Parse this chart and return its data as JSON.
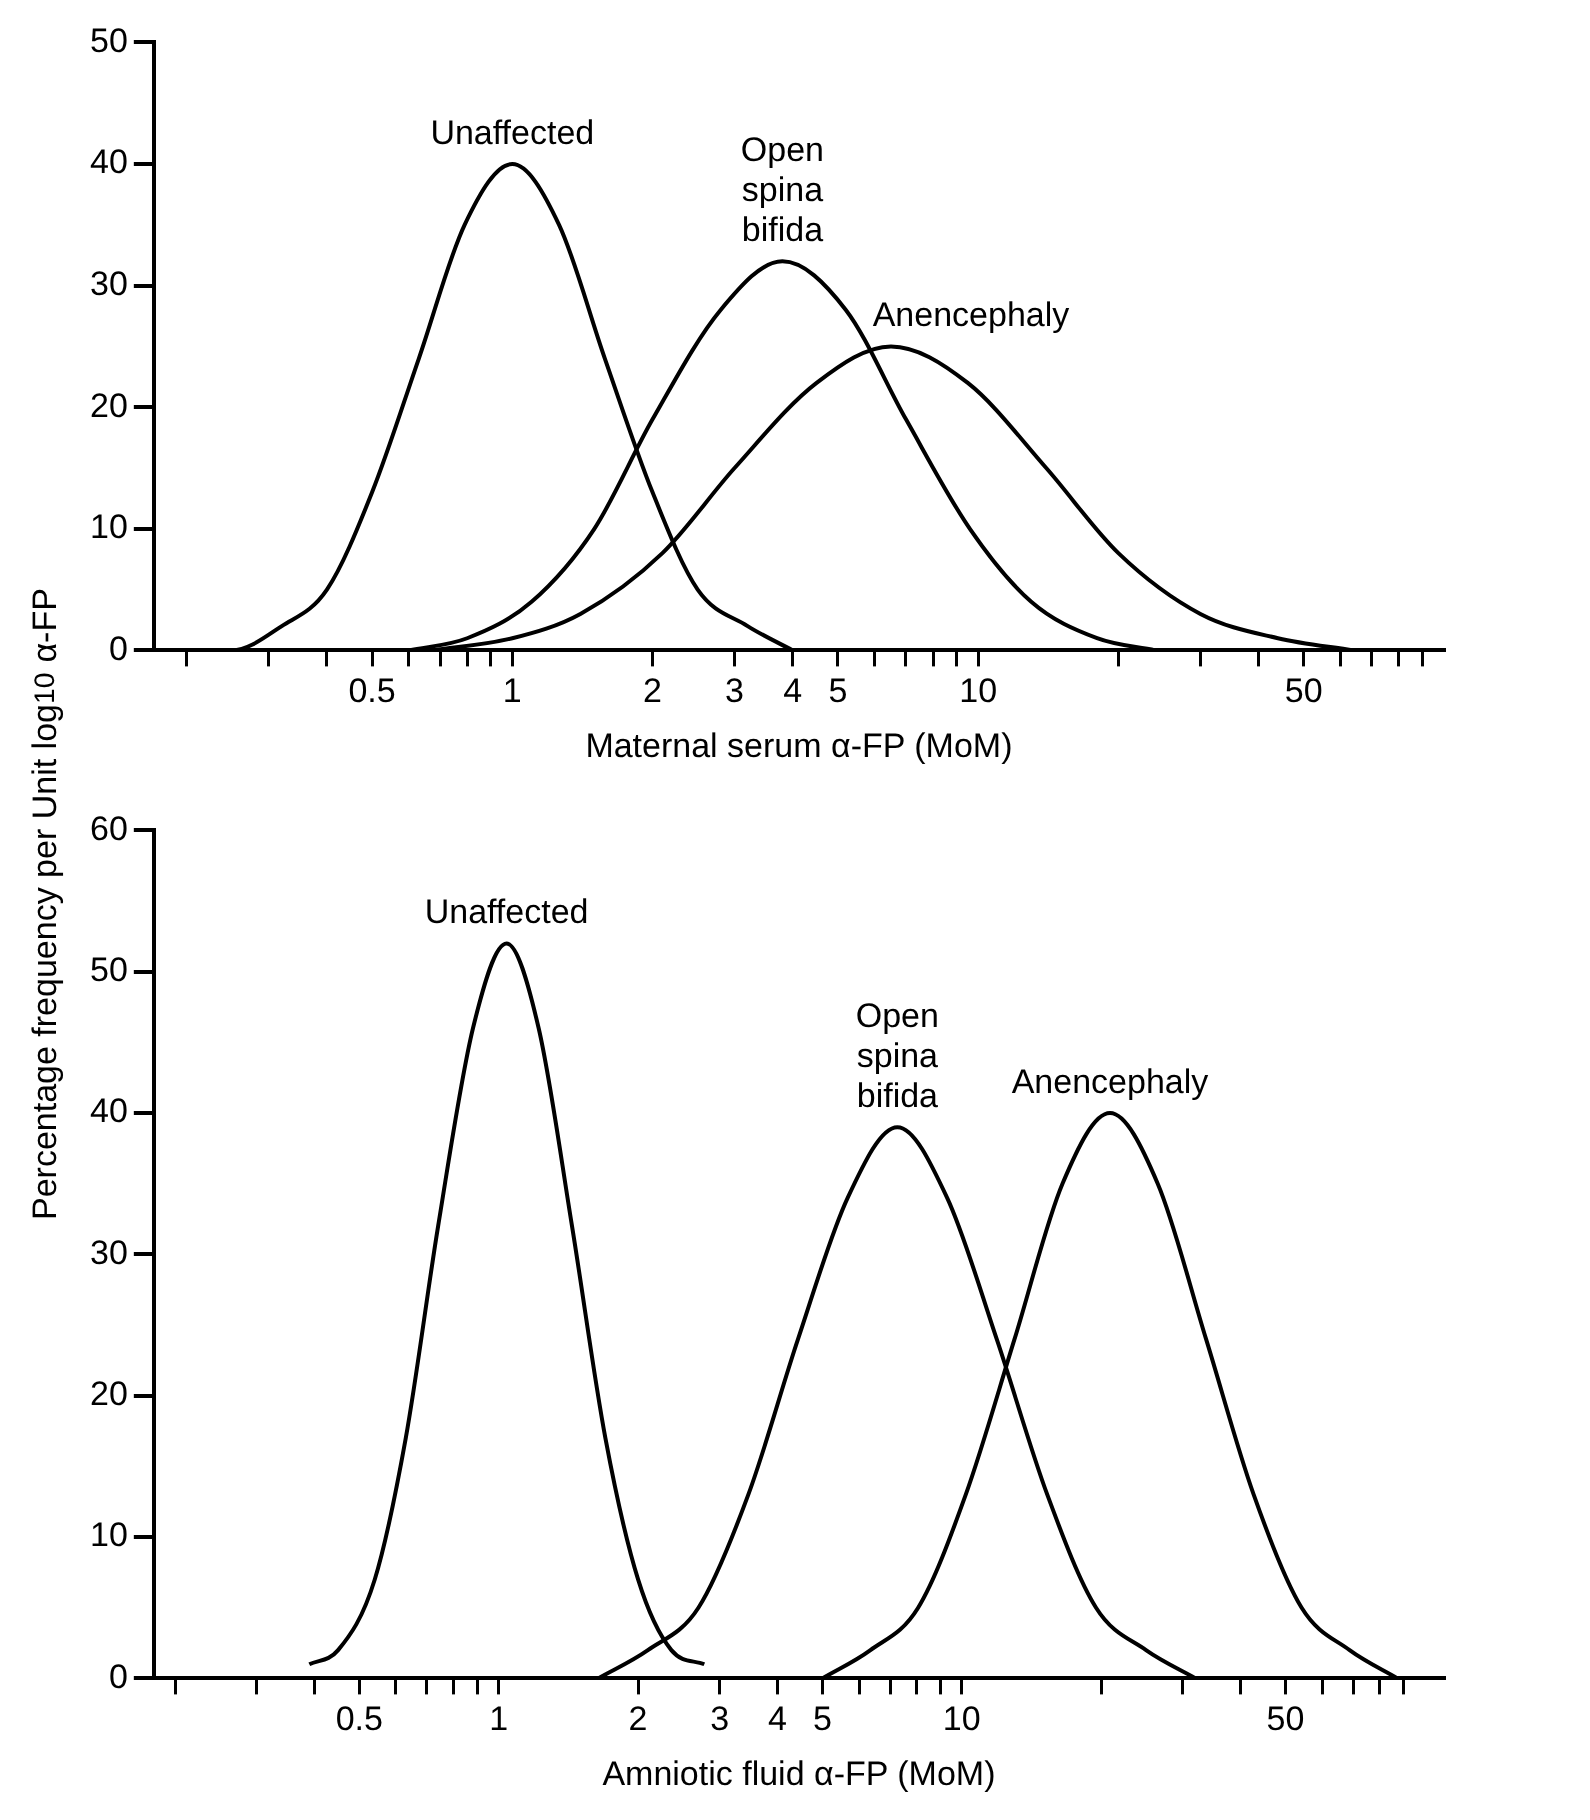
{
  "chart_data": [
    {
      "type": "line",
      "xlabel": "Maternal serum α-FP (MoM)",
      "log": "x",
      "xlim": [
        0.17,
        100
      ],
      "ylim": [
        0,
        50
      ],
      "yticks": [
        0,
        10,
        20,
        30,
        40,
        50
      ],
      "xticks": [
        {
          "value": 0.2,
          "label": null
        },
        {
          "value": 0.3,
          "label": null
        },
        {
          "value": 0.4,
          "label": null
        },
        0.5,
        {
          "value": 0.6,
          "label": null
        },
        {
          "value": 0.7,
          "label": null
        },
        {
          "value": 0.8,
          "label": null
        },
        {
          "value": 0.9,
          "label": null
        },
        1,
        2,
        3,
        4,
        5,
        {
          "value": 6,
          "label": null
        },
        {
          "value": 7,
          "label": null
        },
        {
          "value": 8,
          "label": null
        },
        {
          "value": 9,
          "label": null
        },
        10,
        {
          "value": 20,
          "label": null
        },
        {
          "value": 30,
          "label": null
        },
        {
          "value": 40,
          "label": null
        },
        50,
        {
          "value": 60,
          "label": null
        },
        {
          "value": 70,
          "label": null
        },
        {
          "value": 80,
          "label": null
        },
        {
          "value": 90,
          "label": null
        }
      ],
      "grid": false,
      "legend": false,
      "marker": "none",
      "line_style": "solid",
      "series": [
        {
          "name": "Unaffected",
          "color": "#000000",
          "x": [
            0.2,
            0.25,
            0.32,
            0.4,
            0.5,
            0.63,
            0.79,
            1,
            1.26,
            1.58,
            2,
            2.5,
            3.2,
            4
          ],
          "values": [
            0,
            0,
            2,
            5,
            13,
            24,
            35,
            40,
            35,
            24,
            13,
            5,
            2,
            0
          ]
        },
        {
          "name": "Open spina bifida",
          "color": "#000000",
          "x": [
            0.6,
            0.8,
            1.1,
            1.5,
            2,
            2.8,
            3.8,
            5.2,
            7,
            9.6,
            13,
            18,
            24
          ],
          "values": [
            0,
            1,
            4,
            10,
            19,
            28,
            32,
            28,
            19,
            10,
            4,
            1,
            0
          ]
        },
        {
          "name": "Anencephaly",
          "color": "#000000",
          "x": [
            0.67,
            1,
            1.4,
            2.1,
            3,
            4.5,
            6.5,
            9.5,
            14,
            20,
            30,
            44,
            64
          ],
          "values": [
            0,
            1,
            3,
            8,
            15,
            22,
            25,
            22,
            15,
            8,
            3,
            1,
            0
          ]
        }
      ]
    },
    {
      "type": "line",
      "xlabel": "Amniotic fluid α-FP (MoM)",
      "ylabel": "Percentage frequency per Unit log$_{10}$ α-FP",
      "log": "x",
      "xlim": [
        0.18,
        110
      ],
      "ylim": [
        0,
        60
      ],
      "yticks": [
        0,
        10,
        20,
        30,
        40,
        50,
        60
      ],
      "xticks": [
        {
          "value": 0.2,
          "label": null
        },
        {
          "value": 0.3,
          "label": null
        },
        {
          "value": 0.4,
          "label": null
        },
        0.5,
        {
          "value": 0.6,
          "label": null
        },
        {
          "value": 0.7,
          "label": null
        },
        {
          "value": 0.8,
          "label": null
        },
        {
          "value": 0.9,
          "label": null
        },
        1,
        2,
        3,
        4,
        5,
        {
          "value": 6,
          "label": null
        },
        {
          "value": 7,
          "label": null
        },
        {
          "value": 8,
          "label": null
        },
        {
          "value": 9,
          "label": null
        },
        10,
        {
          "value": 20,
          "label": null
        },
        {
          "value": 30,
          "label": null
        },
        {
          "value": 40,
          "label": null
        },
        50,
        {
          "value": 60,
          "label": null
        },
        {
          "value": 70,
          "label": null
        },
        {
          "value": 80,
          "label": null
        },
        {
          "value": 90,
          "label": null
        }
      ],
      "grid": false,
      "legend": false,
      "marker": "none",
      "line_style": "solid",
      "series": [
        {
          "name": "Unaffected",
          "color": "#000000",
          "x": [
            0.39,
            0.45,
            0.54,
            0.63,
            0.74,
            0.88,
            1.04,
            1.22,
            1.44,
            1.7,
            2,
            2.36,
            2.78
          ],
          "values": [
            1,
            2,
            7,
            17,
            32,
            46,
            52,
            46,
            32,
            17,
            7,
            2,
            1
          ]
        },
        {
          "name": "Open spina bifida",
          "color": "#000000",
          "x": [
            1.64,
            2.1,
            2.7,
            3.46,
            4.43,
            5.67,
            7.26,
            9.3,
            11.9,
            15.3,
            19.5,
            25,
            32
          ],
          "values": [
            0,
            2,
            5,
            13,
            24,
            34,
            39,
            34,
            24,
            13,
            5,
            2,
            0
          ]
        },
        {
          "name": "Anencephaly",
          "color": "#000000",
          "x": [
            5,
            6.35,
            8.05,
            10.2,
            13,
            16.5,
            20.9,
            26.5,
            33.7,
            42.7,
            54.2,
            68.8,
            87.3
          ],
          "values": [
            0,
            2,
            5,
            13,
            24,
            35,
            40,
            35,
            24,
            13,
            5,
            2,
            0
          ]
        }
      ]
    }
  ]
}
